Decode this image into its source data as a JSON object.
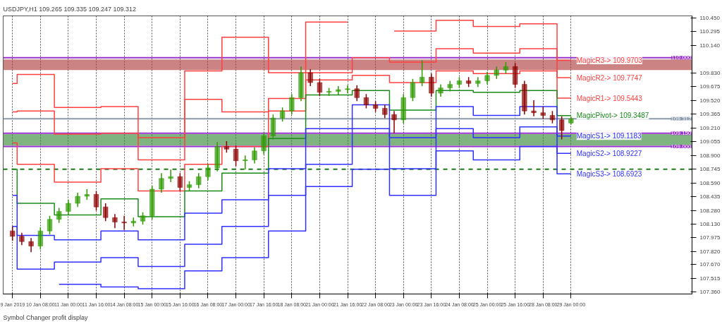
{
  "chart_data": {
    "type": "candlestick",
    "title": "USDJPY,H1  109.265 109.335 109.247 109.312",
    "categories": [
      "9 Jan 2019",
      null,
      null,
      "10 Jan 08:00",
      null,
      null,
      "11 Jan 00:00",
      null,
      null,
      "11 Jan 16:00",
      null,
      null,
      "14 Jan 08:00",
      null,
      null,
      "15 Jan 00:00",
      null,
      null,
      "15 Jan 16:00",
      null,
      null,
      "16 Jan 08:00",
      null,
      null,
      "17 Jan 00:00",
      null,
      null,
      "17 Jan 16:00",
      null,
      null,
      "18 Jan 08:00",
      null,
      null,
      "21 Jan 00:00",
      null,
      null,
      "21 Jan 16:00",
      null,
      null,
      "22 Jan 08:00",
      null,
      null,
      "23 Jan 00:00",
      null,
      null,
      "23 Jan 16:00",
      null,
      null,
      "24 Jan 08:00",
      null,
      null,
      "25 Jan 00:00",
      null,
      null,
      "25 Jan 16:00",
      null,
      null,
      "28 Jan 08:00",
      null,
      null,
      "29 Jan 00:00"
    ],
    "ohlc": [
      [
        108.05,
        108.1,
        107.94,
        107.99
      ],
      [
        107.99,
        108.03,
        107.89,
        107.93
      ],
      [
        107.93,
        107.97,
        107.81,
        107.88
      ],
      [
        107.88,
        108.09,
        107.84,
        108.05
      ],
      [
        108.05,
        108.22,
        108.01,
        108.18
      ],
      [
        108.18,
        108.31,
        108.14,
        108.27
      ],
      [
        108.27,
        108.4,
        108.23,
        108.36
      ],
      [
        108.36,
        108.48,
        108.32,
        108.44
      ],
      [
        108.44,
        108.52,
        108.4,
        108.46
      ],
      [
        108.46,
        108.5,
        108.28,
        108.32
      ],
      [
        108.32,
        108.36,
        108.16,
        108.2
      ],
      [
        108.2,
        108.24,
        108.08,
        108.15
      ],
      [
        108.15,
        108.22,
        108.06,
        108.14
      ],
      [
        108.14,
        108.2,
        108.1,
        108.16
      ],
      [
        108.16,
        108.26,
        108.12,
        108.22
      ],
      [
        108.22,
        108.56,
        108.18,
        108.52
      ],
      [
        108.52,
        108.7,
        108.48,
        108.64
      ],
      [
        108.64,
        108.74,
        108.6,
        108.66
      ],
      [
        108.66,
        108.7,
        108.5,
        108.54
      ],
      [
        108.54,
        108.61,
        108.5,
        108.57
      ],
      [
        108.57,
        108.7,
        108.53,
        108.66
      ],
      [
        108.66,
        108.8,
        108.62,
        108.76
      ],
      [
        108.76,
        109.05,
        108.72,
        109.0
      ],
      [
        109.0,
        109.06,
        108.93,
        108.97
      ],
      [
        108.97,
        109.01,
        108.78,
        108.84
      ],
      [
        108.84,
        108.9,
        108.74,
        108.85
      ],
      [
        108.85,
        108.99,
        108.81,
        108.95
      ],
      [
        108.95,
        109.16,
        108.91,
        109.12
      ],
      [
        109.12,
        109.36,
        109.08,
        109.32
      ],
      [
        109.32,
        109.44,
        109.28,
        109.4
      ],
      [
        109.4,
        109.59,
        109.36,
        109.55
      ],
      [
        109.55,
        109.9,
        109.51,
        109.83
      ],
      [
        109.83,
        109.87,
        109.68,
        109.72
      ],
      [
        109.72,
        109.76,
        109.57,
        109.61
      ],
      [
        109.61,
        109.66,
        109.57,
        109.62
      ],
      [
        109.62,
        109.68,
        109.58,
        109.64
      ],
      [
        109.64,
        109.69,
        109.6,
        109.65
      ],
      [
        109.65,
        109.69,
        109.51,
        109.55
      ],
      [
        109.55,
        109.59,
        109.43,
        109.47
      ],
      [
        109.47,
        109.51,
        109.39,
        109.43
      ],
      [
        109.43,
        109.47,
        109.32,
        109.36
      ],
      [
        109.36,
        109.4,
        109.15,
        109.3
      ],
      [
        109.3,
        109.59,
        109.26,
        109.55
      ],
      [
        109.55,
        109.76,
        109.51,
        109.72
      ],
      [
        109.72,
        109.97,
        109.68,
        109.78
      ],
      [
        109.78,
        109.82,
        109.56,
        109.6
      ],
      [
        109.6,
        109.7,
        109.56,
        109.66
      ],
      [
        109.66,
        109.74,
        109.62,
        109.7
      ],
      [
        109.7,
        109.78,
        109.66,
        109.74
      ],
      [
        109.74,
        109.78,
        109.67,
        109.71
      ],
      [
        109.71,
        109.78,
        109.67,
        109.74
      ],
      [
        109.74,
        109.84,
        109.7,
        109.8
      ],
      [
        109.8,
        109.9,
        109.76,
        109.86
      ],
      [
        109.86,
        109.95,
        109.82,
        109.9
      ],
      [
        109.9,
        109.94,
        109.66,
        109.7
      ],
      [
        109.7,
        109.74,
        109.36,
        109.4
      ],
      [
        109.4,
        109.52,
        109.34,
        109.38
      ],
      [
        109.38,
        109.45,
        109.31,
        109.35
      ],
      [
        109.35,
        109.4,
        109.26,
        109.3
      ],
      [
        109.3,
        109.34,
        109.08,
        109.18
      ],
      [
        109.265,
        109.335,
        109.247,
        109.312
      ]
    ],
    "colors": [
      "#8b0000",
      "#8b0000",
      "#8b0000",
      "#2e9a00",
      "#2e9a00",
      "#2e9a00",
      "#2e9a00",
      "#2e9a00",
      "#2e9a00",
      "#8b0000",
      "#8b0000",
      "#8b0000",
      "#8b0000",
      "#2e9a00",
      "#2e9a00",
      "#2e9a00",
      "#2e9a00",
      "#2e9a00",
      "#8b0000",
      "#2e9a00",
      "#2e9a00",
      "#2e9a00",
      "#2e9a00",
      "#8b0000",
      "#8b0000",
      "#2e9a00",
      "#2e9a00",
      "#2e9a00",
      "#2e9a00",
      "#2e9a00",
      "#2e9a00",
      "#2e9a00",
      "#8b0000",
      "#8b0000",
      "#2e9a00",
      "#2e9a00",
      "#2e9a00",
      "#8b0000",
      "#8b0000",
      "#8b0000",
      "#8b0000",
      "#8b0000",
      "#2e9a00",
      "#2e9a00",
      "#2e9a00",
      "#8b0000",
      "#2e9a00",
      "#2e9a00",
      "#2e9a00",
      "#8b0000",
      "#2e9a00",
      "#2e9a00",
      "#2e9a00",
      "#2e9a00",
      "#8b0000",
      "#8b0000",
      "#8b0000",
      "#8b0000",
      "#8b0000",
      "#8b0000",
      "#2e9a00"
    ],
    "series": [
      {
        "type": "step",
        "name": "MagicR3-> 109.9703",
        "color": "#ff4040",
        "values": [
          109.71,
          109.81,
          109.81,
          109.81,
          109.81,
          109.44,
          109.44,
          109.44,
          109.44,
          109.44,
          109.45,
          109.45,
          109.45,
          109.45,
          109.1,
          109.1,
          109.1,
          109.1,
          109.1,
          109.85,
          109.85,
          109.85,
          109.85,
          110.23,
          110.23,
          110.23,
          110.23,
          110.23,
          109.83,
          109.83,
          109.83,
          109.83,
          110.4,
          110.4,
          110.4,
          110.4,
          110.4,
          null,
          null,
          null,
          null,
          110.3,
          110.3,
          110.3,
          110.3,
          110.3,
          110.42,
          110.42,
          110.42,
          110.42,
          110.35,
          110.35,
          110.35,
          110.35,
          110.35,
          110.38,
          110.38,
          110.38,
          110.38,
          109.9703,
          109.9703
        ]
      },
      {
        "type": "step",
        "name": "MagicR2-> 109.7747",
        "color": "#ff4040",
        "values": [
          109.39,
          109.4,
          109.4,
          109.4,
          109.4,
          109.14,
          109.14,
          109.14,
          109.14,
          109.14,
          109.15,
          109.15,
          109.15,
          109.15,
          108.85,
          108.85,
          108.85,
          108.85,
          108.85,
          109.53,
          109.53,
          109.53,
          109.53,
          109.39,
          109.39,
          109.39,
          109.39,
          109.39,
          109.54,
          109.54,
          109.54,
          109.54,
          109.83,
          109.83,
          109.83,
          109.83,
          109.83,
          110.0,
          110.0,
          110.0,
          110.0,
          109.95,
          109.95,
          109.95,
          109.95,
          109.95,
          110.1,
          110.1,
          110.1,
          110.1,
          110.05,
          110.05,
          110.05,
          110.05,
          110.05,
          110.1,
          110.1,
          110.1,
          110.1,
          109.7747,
          109.7747
        ]
      },
      {
        "type": "step",
        "name": "MagicR1-> 109.5443",
        "color": "#ff4040",
        "values": [
          109.04,
          108.8,
          108.8,
          108.8,
          108.8,
          108.6,
          108.6,
          108.6,
          108.6,
          108.6,
          108.75,
          108.75,
          108.75,
          108.75,
          108.5,
          108.5,
          108.5,
          108.5,
          108.5,
          108.8,
          108.8,
          108.8,
          108.8,
          109.0,
          109.0,
          109.0,
          109.0,
          109.0,
          109.4,
          109.4,
          109.4,
          109.4,
          109.75,
          109.75,
          109.75,
          109.75,
          109.75,
          109.8,
          109.8,
          109.8,
          109.8,
          109.72,
          109.72,
          109.72,
          109.72,
          109.72,
          109.85,
          109.85,
          109.85,
          109.85,
          109.82,
          109.82,
          109.82,
          109.82,
          109.82,
          109.85,
          109.85,
          109.85,
          109.85,
          109.5443,
          109.5443
        ]
      },
      {
        "type": "step",
        "name": "MagicPivot-> 109.3487",
        "color": "#1a8a1a",
        "values": [
          108.745,
          108.36,
          108.36,
          108.36,
          108.36,
          108.23,
          108.23,
          108.23,
          108.23,
          108.23,
          108.41,
          108.41,
          108.41,
          108.41,
          108.21,
          108.21,
          108.21,
          108.21,
          108.21,
          108.5,
          108.5,
          108.5,
          108.5,
          108.7,
          108.7,
          108.7,
          108.7,
          108.7,
          109.09,
          109.09,
          109.09,
          109.09,
          109.58,
          109.58,
          109.58,
          109.58,
          109.58,
          109.63,
          109.63,
          109.63,
          109.63,
          109.41,
          109.41,
          109.41,
          109.41,
          109.41,
          109.63,
          109.63,
          109.63,
          109.63,
          109.61,
          109.61,
          109.61,
          109.61,
          109.61,
          109.63,
          109.63,
          109.63,
          109.63,
          109.3487,
          109.3487
        ]
      },
      {
        "type": "step",
        "name": "MagicS1-> 109.1183",
        "color": "#3030ff",
        "values": [
          108.45,
          108.0,
          108.0,
          108.0,
          108.0,
          107.95,
          107.95,
          107.95,
          107.95,
          107.95,
          108.05,
          108.05,
          108.05,
          108.05,
          107.95,
          107.95,
          107.95,
          107.95,
          107.95,
          108.25,
          108.25,
          108.25,
          108.25,
          108.4,
          108.4,
          108.4,
          108.4,
          108.4,
          108.75,
          108.75,
          108.75,
          108.75,
          109.2,
          109.2,
          109.2,
          109.2,
          109.2,
          109.47,
          109.47,
          109.47,
          109.47,
          109.1,
          109.1,
          109.1,
          109.1,
          109.1,
          109.45,
          109.45,
          109.45,
          109.45,
          109.35,
          109.35,
          109.35,
          109.35,
          109.35,
          109.45,
          109.45,
          109.45,
          109.45,
          109.1183,
          109.1183
        ]
      },
      {
        "type": "step",
        "name": "MagicS2-> 108.9227",
        "color": "#3030ff",
        "values": [
          108.1,
          107.62,
          107.62,
          107.62,
          107.62,
          107.7,
          107.7,
          107.7,
          107.7,
          107.7,
          107.75,
          107.75,
          107.75,
          107.75,
          107.65,
          107.65,
          107.65,
          107.65,
          107.65,
          107.9,
          107.9,
          107.9,
          107.9,
          108.1,
          108.1,
          108.1,
          108.1,
          108.1,
          108.45,
          108.45,
          108.45,
          108.45,
          108.8,
          108.8,
          108.8,
          108.8,
          108.8,
          109.2,
          109.2,
          109.2,
          109.2,
          108.75,
          108.75,
          108.75,
          108.75,
          108.75,
          109.2,
          109.2,
          109.2,
          109.2,
          109.1,
          109.1,
          109.1,
          109.1,
          109.1,
          109.22,
          109.22,
          109.22,
          109.22,
          108.9227,
          108.9227
        ]
      },
      {
        "type": "step",
        "name": "MagicS3-> 108.6923",
        "color": "#3030ff",
        "values": [
          null,
          null,
          null,
          null,
          null,
          107.45,
          107.45,
          107.45,
          107.45,
          107.45,
          107.42,
          107.42,
          107.42,
          107.42,
          107.4,
          107.4,
          107.4,
          107.4,
          107.4,
          107.6,
          107.6,
          107.6,
          107.6,
          107.75,
          107.75,
          107.75,
          107.75,
          107.75,
          108.05,
          108.05,
          108.05,
          108.05,
          108.55,
          108.55,
          108.55,
          108.55,
          108.55,
          108.745,
          108.745,
          108.745,
          108.745,
          108.45,
          108.45,
          108.45,
          108.45,
          108.45,
          108.95,
          108.95,
          108.95,
          108.95,
          108.85,
          108.85,
          108.85,
          108.85,
          108.85,
          109.0,
          109.0,
          109.0,
          109.0,
          108.6923,
          108.6923
        ]
      }
    ],
    "ref_lines": [
      {
        "axis": "y",
        "value": 110.0,
        "label": "110.000",
        "color": "#9932cc"
      },
      {
        "axis": "y",
        "value": 109.312,
        "label": "109.312",
        "color": "#8a9aaa"
      },
      {
        "axis": "y",
        "value": 109.15,
        "label": "109.150",
        "color": "#9932cc"
      },
      {
        "axis": "y",
        "value": 109.0,
        "label": "109.000",
        "color": "#9932cc"
      },
      {
        "axis": "y",
        "value": 108.745,
        "color": "#1a7a1a",
        "line_style": "dashed"
      }
    ],
    "bands": [
      {
        "axis": "y",
        "from": 109.86,
        "to": 109.98,
        "color": "#b04040"
      },
      {
        "axis": "y",
        "from": 109.01,
        "to": 109.14,
        "color": "#3a8a3a"
      }
    ],
    "annotations": [
      "Symbol Changer profit display"
    ],
    "ylim": [
      107.34,
      110.47
    ],
    "yticks": [
      {
        "value": 110.45,
        "label": "110.450"
      },
      {
        "value": 110.295,
        "label": "110.295"
      },
      {
        "value": 110.14,
        "label": "110.140"
      },
      {
        "value": 109.83,
        "label": "109.830"
      },
      {
        "value": 109.675,
        "label": "109.675"
      },
      {
        "value": 109.52,
        "label": "109.520"
      },
      {
        "value": 109.365,
        "label": "109.365"
      },
      {
        "value": 109.21,
        "label": "109.210"
      },
      {
        "value": 109.055,
        "label": "109.055"
      },
      {
        "value": 108.9,
        "label": "108.900"
      },
      {
        "value": 108.745,
        "label": "108.745"
      },
      {
        "value": 108.59,
        "label": "108.590"
      },
      {
        "value": 108.435,
        "label": "108.435"
      },
      {
        "value": 108.28,
        "label": "108.280"
      },
      {
        "value": 108.13,
        "label": "108.130"
      },
      {
        "value": 107.975,
        "label": "107.975"
      },
      {
        "value": 107.82,
        "label": "107.820"
      },
      {
        "value": 107.67,
        "label": "107.670"
      },
      {
        "value": 107.515,
        "label": "107.515"
      },
      {
        "value": 107.36,
        "label": "107.360"
      }
    ],
    "grid": "x"
  }
}
